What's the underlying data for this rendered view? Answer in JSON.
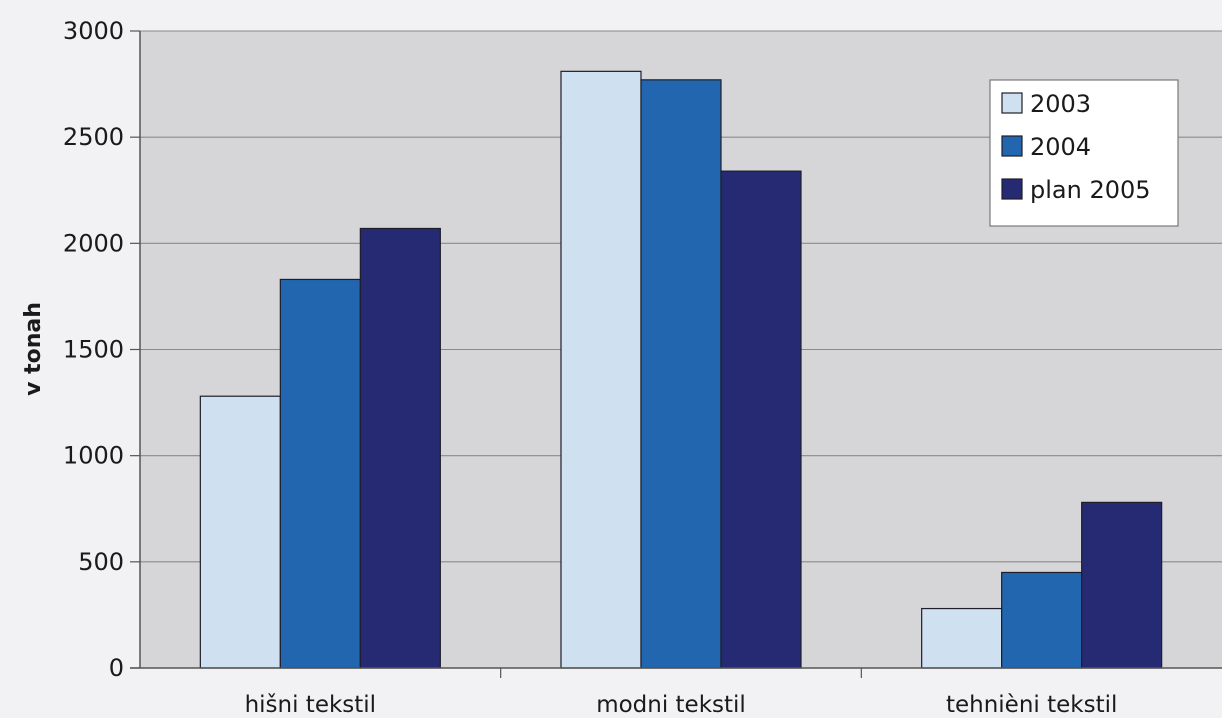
{
  "chart_data": {
    "type": "bar",
    "title": "",
    "xlabel": "",
    "ylabel": "v tonah",
    "ylim": [
      0,
      3000
    ],
    "yticks": [
      0,
      500,
      1000,
      1500,
      2000,
      2500,
      3000
    ],
    "grid": true,
    "legend_position": "top-right",
    "categories": [
      "hišni tekstil",
      "modni tekstil",
      "tehnièni tekstil"
    ],
    "series": [
      {
        "name": "2003",
        "color": "#cfe0f1",
        "values": [
          1280,
          2810,
          280
        ]
      },
      {
        "name": "2004",
        "color": "#2366b0",
        "values": [
          1830,
          2770,
          450
        ]
      },
      {
        "name": "plan 2005",
        "color": "#262a73",
        "values": [
          2070,
          2340,
          780
        ]
      }
    ],
    "colors": {
      "plot_background": "#d6d6d8",
      "page_background": "#f2f2f4",
      "gridline": "#8a8a8c",
      "bar_outline": "#1e1e2a"
    }
  }
}
